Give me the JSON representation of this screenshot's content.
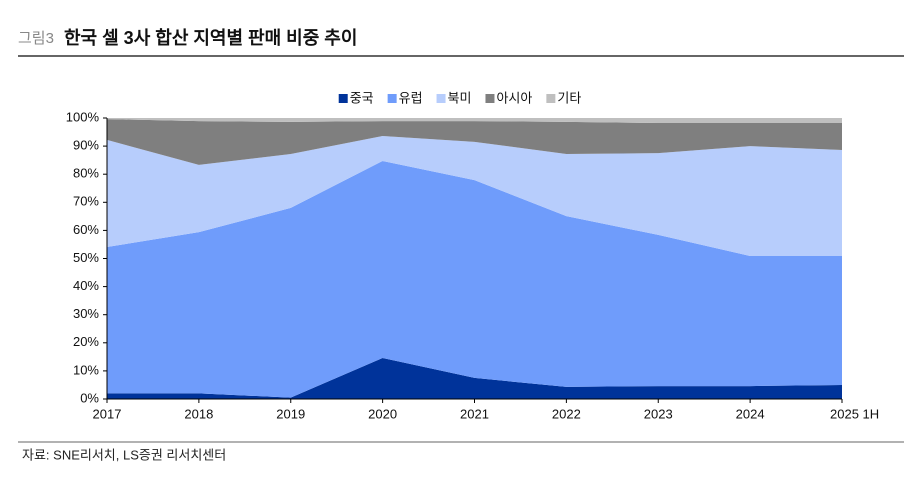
{
  "figure_label": "그림3",
  "source": "자료: SNE리서치, LS증권 리서치센터",
  "chart_data": {
    "type": "stacked_area",
    "title": "한국 셀 3사 합산 지역별 판매 비중 추이",
    "categories": [
      "2017",
      "2018",
      "2019",
      "2020",
      "2021",
      "2022",
      "2023",
      "2024",
      "2025 1H"
    ],
    "series": [
      {
        "name": "중국",
        "color": "#00339a",
        "values": [
          2.0,
          2.0,
          0.5,
          14.6,
          7.5,
          4.3,
          4.6,
          4.6,
          5.0
        ]
      },
      {
        "name": "유럽",
        "color": "#6f9cfb",
        "values": [
          52.1,
          57.4,
          67.5,
          70.1,
          70.4,
          60.8,
          53.8,
          46.3,
          45.9
        ]
      },
      {
        "name": "북미",
        "color": "#b7cdfc",
        "values": [
          38.1,
          23.9,
          19.2,
          8.9,
          13.6,
          22.1,
          29.1,
          39.1,
          37.7
        ]
      },
      {
        "name": "아시아",
        "color": "#7f7f7f",
        "values": [
          7.4,
          15.6,
          11.4,
          5.3,
          7.4,
          11.4,
          10.7,
          8.2,
          9.6
        ]
      },
      {
        "name": "기타",
        "color": "#bfbfbf",
        "values": [
          0.4,
          1.1,
          1.4,
          1.1,
          1.1,
          1.4,
          1.8,
          1.8,
          1.8
        ]
      }
    ],
    "ylim": [
      0,
      100
    ],
    "yticks": [
      {
        "value": 0,
        "label": "0%"
      },
      {
        "value": 10,
        "label": "10%"
      },
      {
        "value": 20,
        "label": "20%"
      },
      {
        "value": 30,
        "label": "30%"
      },
      {
        "value": 40,
        "label": "40%"
      },
      {
        "value": 50,
        "label": "50%"
      },
      {
        "value": 60,
        "label": "60%"
      },
      {
        "value": 70,
        "label": "70%"
      },
      {
        "value": 80,
        "label": "80%"
      },
      {
        "value": 90,
        "label": "90%"
      },
      {
        "value": 100,
        "label": "100%"
      }
    ],
    "legend": "top"
  }
}
